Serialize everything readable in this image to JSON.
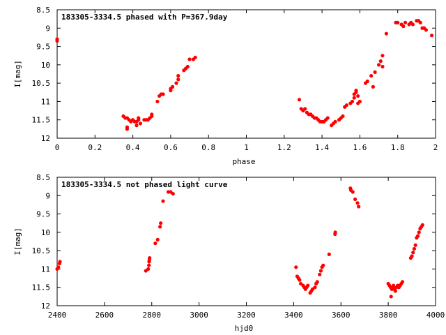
{
  "chart_data": [
    {
      "type": "scatter",
      "title": "183305-3334.5 phased with P=367.9day",
      "xlabel": "phase",
      "ylabel": "I[mag]",
      "xlim": [
        0,
        2
      ],
      "ylim": [
        12,
        8.5
      ],
      "y_inverted": true,
      "xticks": [
        0,
        0.2,
        0.4,
        0.6,
        0.8,
        1,
        1.2,
        1.4,
        1.6,
        1.8,
        2
      ],
      "xtick_labels": [
        "0",
        "0.2",
        "0.4",
        "0.6",
        "0.8",
        "1",
        "1.2",
        "1.4",
        "1.6",
        "1.8",
        "2"
      ],
      "yticks": [
        8.5,
        9,
        9.5,
        10,
        10.5,
        11,
        11.5,
        12
      ],
      "ytick_labels": [
        "8.5",
        "9",
        "9.5",
        "10",
        "10.5",
        "11",
        "11.5",
        "12"
      ],
      "grid": false,
      "marker_color": "#ff0000",
      "series": [
        {
          "points": [
            [
              0.0,
              9.3
            ],
            [
              0.0,
              9.35
            ],
            [
              0.35,
              11.4
            ],
            [
              0.36,
              11.45
            ],
            [
              0.37,
              11.45
            ],
            [
              0.37,
              11.75
            ],
            [
              0.37,
              11.7
            ],
            [
              0.38,
              11.5
            ],
            [
              0.39,
              11.55
            ],
            [
              0.4,
              11.5
            ],
            [
              0.41,
              11.55
            ],
            [
              0.42,
              11.55
            ],
            [
              0.42,
              11.65
            ],
            [
              0.43,
              11.5
            ],
            [
              0.43,
              11.45
            ],
            [
              0.44,
              11.6
            ],
            [
              0.46,
              11.5
            ],
            [
              0.47,
              11.5
            ],
            [
              0.48,
              11.5
            ],
            [
              0.49,
              11.45
            ],
            [
              0.5,
              11.4
            ],
            [
              0.5,
              11.35
            ],
            [
              0.53,
              11.0
            ],
            [
              0.54,
              10.85
            ],
            [
              0.55,
              10.8
            ],
            [
              0.56,
              10.8
            ],
            [
              0.6,
              10.7
            ],
            [
              0.6,
              10.65
            ],
            [
              0.61,
              10.6
            ],
            [
              0.63,
              10.5
            ],
            [
              0.64,
              10.4
            ],
            [
              0.64,
              10.3
            ],
            [
              0.67,
              10.15
            ],
            [
              0.68,
              10.1
            ],
            [
              0.69,
              10.05
            ],
            [
              0.7,
              9.85
            ],
            [
              0.72,
              9.85
            ],
            [
              0.73,
              9.8
            ],
            [
              1.28,
              10.95
            ],
            [
              1.29,
              11.2
            ],
            [
              1.3,
              11.25
            ],
            [
              1.31,
              11.2
            ],
            [
              1.32,
              11.3
            ],
            [
              1.33,
              11.35
            ],
            [
              1.34,
              11.35
            ],
            [
              1.35,
              11.4
            ],
            [
              1.36,
              11.45
            ],
            [
              1.37,
              11.45
            ],
            [
              1.38,
              11.5
            ],
            [
              1.39,
              11.55
            ],
            [
              1.4,
              11.55
            ],
            [
              1.41,
              11.55
            ],
            [
              1.42,
              11.5
            ],
            [
              1.43,
              11.45
            ],
            [
              1.45,
              11.65
            ],
            [
              1.46,
              11.6
            ],
            [
              1.47,
              11.55
            ],
            [
              1.49,
              11.5
            ],
            [
              1.5,
              11.45
            ],
            [
              1.51,
              11.4
            ],
            [
              1.52,
              11.15
            ],
            [
              1.53,
              11.1
            ],
            [
              1.55,
              11.05
            ],
            [
              1.56,
              11.0
            ],
            [
              1.57,
              10.9
            ],
            [
              1.57,
              10.8
            ],
            [
              1.58,
              10.7
            ],
            [
              1.58,
              10.75
            ],
            [
              1.59,
              10.85
            ],
            [
              1.59,
              11.05
            ],
            [
              1.6,
              11.0
            ],
            [
              1.63,
              10.5
            ],
            [
              1.64,
              10.45
            ],
            [
              1.66,
              10.3
            ],
            [
              1.67,
              10.6
            ],
            [
              1.68,
              10.2
            ],
            [
              1.7,
              10.0
            ],
            [
              1.71,
              9.9
            ],
            [
              1.72,
              9.75
            ],
            [
              1.72,
              10.05
            ],
            [
              1.74,
              9.15
            ],
            [
              1.79,
              8.85
            ],
            [
              1.8,
              8.85
            ],
            [
              1.82,
              8.9
            ],
            [
              1.83,
              8.95
            ],
            [
              1.84,
              8.85
            ],
            [
              1.86,
              8.9
            ],
            [
              1.87,
              8.85
            ],
            [
              1.88,
              8.9
            ],
            [
              1.9,
              8.8
            ],
            [
              1.91,
              8.8
            ],
            [
              1.92,
              8.85
            ],
            [
              1.93,
              9.0
            ],
            [
              1.94,
              9.0
            ],
            [
              1.95,
              9.05
            ],
            [
              1.98,
              9.2
            ]
          ]
        }
      ]
    },
    {
      "type": "scatter",
      "title": "183305-3334.5 not phased light curve",
      "xlabel": "hjd0",
      "ylabel": "I[mag]",
      "xlim": [
        2400,
        4000
      ],
      "ylim": [
        12,
        8.5
      ],
      "y_inverted": true,
      "xticks": [
        2400,
        2600,
        2800,
        3000,
        3200,
        3400,
        3600,
        3800,
        4000
      ],
      "xtick_labels": [
        "2400",
        "2600",
        "2800",
        "3000",
        "3200",
        "3400",
        "3600",
        "3800",
        "4000"
      ],
      "yticks": [
        8.5,
        9,
        9.5,
        10,
        10.5,
        11,
        11.5,
        12
      ],
      "ytick_labels": [
        "8.5",
        "9",
        "9.5",
        "10",
        "10.5",
        "11",
        "11.5",
        "12"
      ],
      "grid": false,
      "marker_color": "#ff0000",
      "series": [
        {
          "points": [
            [
              2400,
              11.0
            ],
            [
              2405,
              10.95
            ],
            [
              2410,
              10.85
            ],
            [
              2412,
              10.8
            ],
            [
              2775,
              11.05
            ],
            [
              2785,
              11.0
            ],
            [
              2788,
              10.9
            ],
            [
              2789,
              10.8
            ],
            [
              2790,
              10.75
            ],
            [
              2791,
              10.7
            ],
            [
              2815,
              10.3
            ],
            [
              2825,
              10.2
            ],
            [
              2835,
              9.85
            ],
            [
              2838,
              9.75
            ],
            [
              2848,
              9.15
            ],
            [
              2870,
              8.9
            ],
            [
              2880,
              8.9
            ],
            [
              2890,
              8.95
            ],
            [
              3410,
              10.95
            ],
            [
              3415,
              11.2
            ],
            [
              3420,
              11.25
            ],
            [
              3425,
              11.3
            ],
            [
              3430,
              11.4
            ],
            [
              3440,
              11.45
            ],
            [
              3445,
              11.5
            ],
            [
              3450,
              11.55
            ],
            [
              3455,
              11.5
            ],
            [
              3460,
              11.45
            ],
            [
              3470,
              11.65
            ],
            [
              3475,
              11.6
            ],
            [
              3480,
              11.55
            ],
            [
              3490,
              11.5
            ],
            [
              3495,
              11.4
            ],
            [
              3500,
              11.35
            ],
            [
              3510,
              11.15
            ],
            [
              3515,
              11.05
            ],
            [
              3520,
              10.95
            ],
            [
              3525,
              10.9
            ],
            [
              3550,
              10.6
            ],
            [
              3575,
              10.05
            ],
            [
              3576,
              10.0
            ],
            [
              3640,
              8.8
            ],
            [
              3642,
              8.85
            ],
            [
              3650,
              8.9
            ],
            [
              3660,
              9.1
            ],
            [
              3670,
              9.2
            ],
            [
              3675,
              9.3
            ],
            [
              3800,
              11.4
            ],
            [
              3805,
              11.45
            ],
            [
              3810,
              11.5
            ],
            [
              3812,
              11.75
            ],
            [
              3815,
              11.55
            ],
            [
              3820,
              11.5
            ],
            [
              3822,
              11.45
            ],
            [
              3825,
              11.55
            ],
            [
              3830,
              11.6
            ],
            [
              3835,
              11.5
            ],
            [
              3840,
              11.45
            ],
            [
              3845,
              11.5
            ],
            [
              3850,
              11.45
            ],
            [
              3855,
              11.4
            ],
            [
              3860,
              11.35
            ],
            [
              3895,
              10.7
            ],
            [
              3900,
              10.65
            ],
            [
              3905,
              10.55
            ],
            [
              3910,
              10.45
            ],
            [
              3915,
              10.35
            ],
            [
              3920,
              10.15
            ],
            [
              3925,
              10.1
            ],
            [
              3930,
              10.0
            ],
            [
              3935,
              9.9
            ],
            [
              3940,
              9.85
            ],
            [
              3945,
              9.8
            ]
          ]
        }
      ]
    }
  ]
}
